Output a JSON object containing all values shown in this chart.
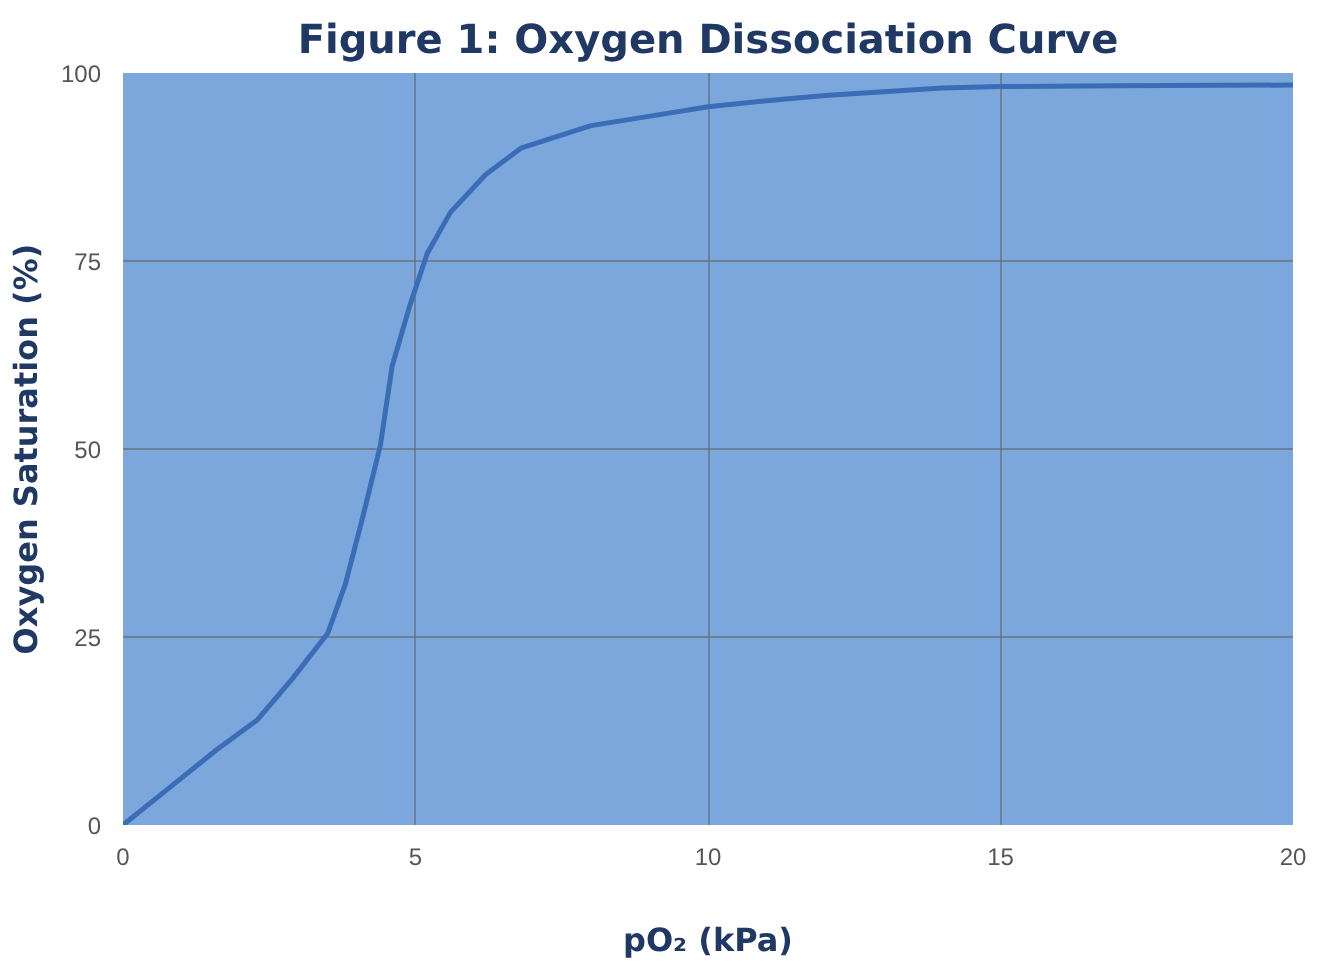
{
  "chart_data": {
    "type": "line",
    "title": "Figure 1: Oxygen Dissociation Curve",
    "xlabel": "pO₂ (kPa)",
    "ylabel": "Oxygen Saturation (%)",
    "x": [
      0,
      0.8,
      1.6,
      2.3,
      2.9,
      3.5,
      3.8,
      4.1,
      4.4,
      4.6,
      4.9,
      5.2,
      5.6,
      6.2,
      6.8,
      8,
      9.2,
      10,
      11,
      12,
      13,
      14,
      15,
      17,
      20
    ],
    "series": [
      {
        "color": "#3a6db5",
        "values": [
          0,
          5,
          10,
          14,
          19.5,
          25.5,
          32,
          41,
          50.5,
          61,
          69,
          76,
          81.5,
          86.5,
          90,
          93,
          94.5,
          95.5,
          96.3,
          97,
          97.5,
          98,
          98.2,
          98.3,
          98.4
        ]
      }
    ],
    "xlim": [
      0,
      20
    ],
    "ylim": [
      0,
      100
    ],
    "xticks": [
      0,
      5,
      10,
      15,
      20
    ],
    "yticks": [
      0,
      25,
      50,
      75,
      100
    ],
    "grid": true,
    "marker": "none",
    "line_style": "solid"
  }
}
